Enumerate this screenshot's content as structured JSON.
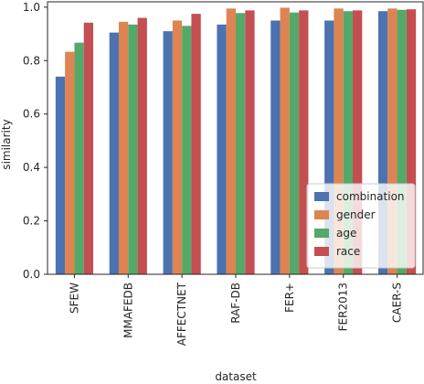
{
  "chart_data": {
    "type": "bar",
    "xlabel": "dataset",
    "ylabel": "similarity",
    "ylim": [
      0.0,
      1.02
    ],
    "yticks": [
      "0.0",
      "0.2",
      "0.4",
      "0.6",
      "0.8",
      "1.0"
    ],
    "grid": false,
    "legend_position": "lower-right",
    "categories": [
      "SFEW",
      "MMAFEDB",
      "AFFECTNET",
      "RAF-DB",
      "FER+",
      "FER2013",
      "CAER-S"
    ],
    "series": [
      {
        "name": "combination",
        "color": "#4c72b0",
        "values": [
          0.74,
          0.905,
          0.91,
          0.935,
          0.95,
          0.95,
          0.985
        ]
      },
      {
        "name": "gender",
        "color": "#dd8452",
        "values": [
          0.833,
          0.945,
          0.95,
          0.995,
          0.998,
          0.995,
          0.995
        ]
      },
      {
        "name": "age",
        "color": "#55a868",
        "values": [
          0.867,
          0.935,
          0.93,
          0.978,
          0.98,
          0.985,
          0.99
        ]
      },
      {
        "name": "race",
        "color": "#c44e52",
        "values": [
          0.942,
          0.96,
          0.975,
          0.988,
          0.988,
          0.988,
          0.992
        ]
      }
    ]
  }
}
